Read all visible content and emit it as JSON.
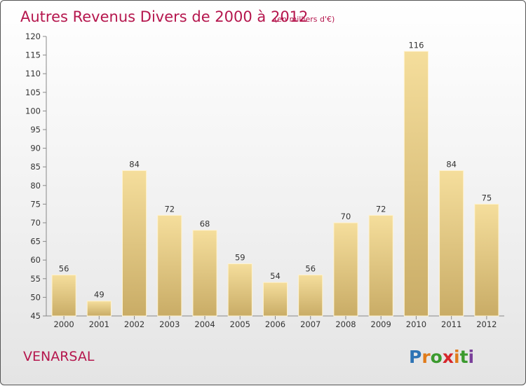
{
  "chart_data": {
    "type": "bar",
    "title": "Autres Revenus Divers de 2000 à 2012",
    "unit": "(en milliers d'€)",
    "categories": [
      "2000",
      "2001",
      "2002",
      "2003",
      "2004",
      "2005",
      "2006",
      "2007",
      "2008",
      "2009",
      "2010",
      "2011",
      "2012"
    ],
    "values": [
      56,
      49,
      84,
      72,
      68,
      59,
      54,
      56,
      70,
      72,
      116,
      84,
      75
    ],
    "ylim": [
      45,
      120
    ],
    "yticks": [
      45,
      50,
      55,
      60,
      65,
      70,
      75,
      80,
      85,
      90,
      95,
      100,
      105,
      110,
      115,
      120
    ],
    "xlabel": "",
    "ylabel": "",
    "grid": false,
    "bar_color": "#e8cc84"
  },
  "footer": {
    "place_name": "VENARSAL"
  },
  "logo": {
    "letters": [
      "P",
      "r",
      "o",
      "x",
      "i",
      "t",
      "i"
    ],
    "colors": [
      "#2e74b5",
      "#e07b1a",
      "#3b9a2e",
      "#d6262b",
      "#e07b1a",
      "#3b9a2e",
      "#7a3f9a"
    ]
  }
}
